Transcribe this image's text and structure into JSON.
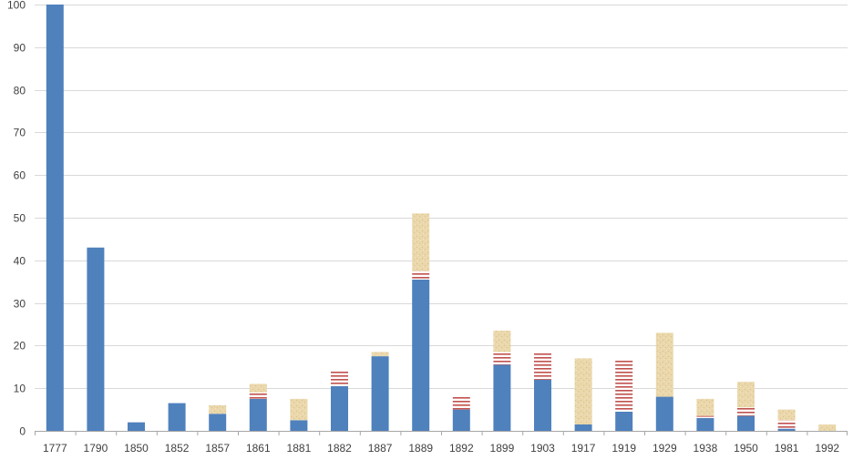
{
  "chart_data": {
    "type": "bar",
    "stacked": true,
    "grid": true,
    "ylim": [
      0,
      100
    ],
    "yticks": [
      0,
      10,
      20,
      30,
      40,
      50,
      60,
      70,
      80,
      90,
      100
    ],
    "categories": [
      "1777",
      "1790",
      "1850",
      "1852",
      "1857",
      "1861",
      "1881",
      "1882",
      "1887",
      "1889",
      "1892",
      "1899",
      "1903",
      "1917",
      "1919",
      "1929",
      "1938",
      "1950",
      "1981",
      "1992"
    ],
    "series": [
      {
        "key": "blue",
        "color": "#4f81bd",
        "pattern": "solid",
        "values": [
          100,
          43,
          2,
          6.5,
          4,
          7.5,
          2.5,
          10.5,
          17.5,
          35.5,
          5,
          15.5,
          12,
          1.5,
          4.5,
          8,
          3,
          3.5,
          0.5,
          0
        ]
      },
      {
        "key": "red",
        "color": "#c0504d",
        "pattern": "stripes",
        "values": [
          0,
          0,
          0,
          0,
          0,
          1.5,
          0,
          3.5,
          0,
          2,
          3,
          3,
          6.5,
          0,
          12,
          0,
          0.5,
          2,
          2,
          0
        ]
      },
      {
        "key": "tan",
        "color": "#e8d3a5",
        "pattern": "texture",
        "values": [
          0,
          0,
          0,
          0,
          2,
          2,
          5,
          0,
          1,
          13.5,
          0,
          5,
          0,
          15.5,
          0,
          15,
          4,
          6,
          2.5,
          1.5
        ]
      }
    ]
  }
}
